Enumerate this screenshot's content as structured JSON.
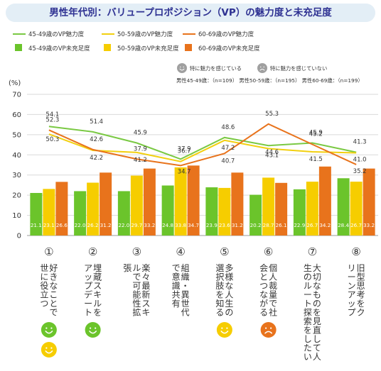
{
  "title": "男性年代別：バリュープロポジション（VP）の魅力度と未充足度",
  "chart_data": {
    "type": "bar",
    "ylabel": "(%)",
    "ylim": [
      0,
      70
    ],
    "yticks": [
      0,
      10,
      20,
      30,
      40,
      50,
      60,
      70
    ],
    "grid": true,
    "legend_position": "top",
    "colors": {
      "line_45_49": "#7ac943",
      "line_50_59": "#f2d00f",
      "line_60_69": "#e8731c",
      "bar_45_49": "#6bc42b",
      "bar_50_59": "#f6cd00",
      "bar_60_69": "#e8731c"
    },
    "categories": [
      {
        "num": "①",
        "text": "好きなことで世に役立つ",
        "faces": [
          "smile-green",
          "smile-yellow"
        ]
      },
      {
        "num": "②",
        "text": "埋蔵スキルをアップデート",
        "faces": [
          "smile-green"
        ]
      },
      {
        "num": "③",
        "text": "楽々最新スキルで可能性拡張",
        "faces": []
      },
      {
        "num": "④",
        "text": "組織・異世代で意識共有",
        "faces": []
      },
      {
        "num": "⑤",
        "text": "多様な人生の選択肢を知る",
        "faces": [
          "smile-yellow"
        ]
      },
      {
        "num": "⑥",
        "text": "個人裁量で社会とつながる",
        "faces": [
          "frown-orange"
        ]
      },
      {
        "num": "⑦",
        "text": "大切なものを見直して人生のルート探索をしたい",
        "faces": []
      },
      {
        "num": "⑧",
        "text": "旧型思考をクリーンアップ",
        "faces": []
      }
    ],
    "line_series": [
      {
        "name": "45-49歳のVP魅力度",
        "values": [
          54.1,
          51.4,
          45.9,
          37.9,
          48.6,
          44.6,
          45.9,
          41.3
        ]
      },
      {
        "name": "50-59歳のVP魅力度",
        "values": [
          50.3,
          42.2,
          41.2,
          36.7,
          47.2,
          43.1,
          41.5,
          41.0
        ]
      },
      {
        "name": "60-69歳のVP魅力度",
        "values": [
          52.3,
          42.6,
          37.9,
          34.7,
          40.7,
          55.3,
          45.2,
          35.2
        ]
      }
    ],
    "bar_series": [
      {
        "name": "45-49歳のVP未充足度",
        "values": [
          21.1,
          22.0,
          22.0,
          24.8,
          23.9,
          20.2,
          22.9,
          28.4
        ]
      },
      {
        "name": "50-59歳のVP未充足度",
        "values": [
          23.1,
          26.2,
          29.7,
          33.8,
          23.6,
          28.7,
          26.7,
          26.7
        ]
      },
      {
        "name": "60-69歳のVP未充足度",
        "values": [
          26.6,
          31.2,
          33.2,
          34.7,
          31.2,
          26.1,
          34.2,
          33.2
        ]
      }
    ],
    "legend_notes": {
      "positive": "特に魅力を感じている",
      "negative": "特に魅力を感じていない",
      "sample_sizes": "男性45-49歳：（n=109）  男性50-59歳：（n=195）  男性60-69歳：（n=199）"
    }
  }
}
